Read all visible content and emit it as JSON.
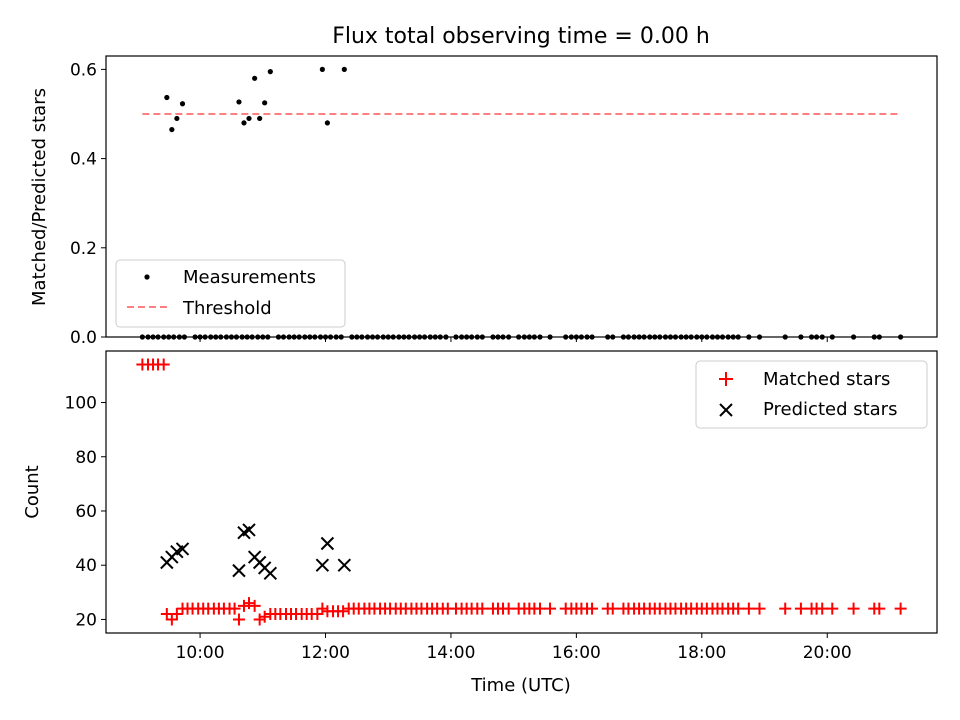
{
  "figure": {
    "title": "Flux total observing time = 0.00 h"
  },
  "colors": {
    "measure": "#000000",
    "threshold": "#ff8080",
    "matched": "#ff0000",
    "predicted": "#000000"
  },
  "chart_data": [
    {
      "type": "scatter",
      "ylabel": "Matched/Predicted stars",
      "xlim": [
        8.5,
        21.75
      ],
      "ylim": [
        0,
        0.63
      ],
      "yticks": [
        0.0,
        0.2,
        0.4,
        0.6
      ],
      "ytick_labels": [
        "0.0",
        "0.2",
        "0.4",
        "0.6"
      ],
      "legend_location": "lower-left",
      "threshold": {
        "label": "Threshold",
        "y": 0.5,
        "x_range": [
          9.08,
          21.17
        ]
      },
      "series": [
        {
          "name": "Measurements",
          "x": [
            9.08,
            9.17,
            9.25,
            9.33,
            9.42,
            9.5,
            9.58,
            9.67,
            9.75,
            9.92,
            10.0,
            10.08,
            10.17,
            10.25,
            10.33,
            10.42,
            10.5,
            10.58,
            10.67,
            10.75,
            10.83,
            10.92,
            11.0,
            11.08,
            11.25,
            11.33,
            11.42,
            11.5,
            11.58,
            11.67,
            11.75,
            11.83,
            11.92,
            12.0,
            12.08,
            12.17,
            12.25,
            12.42,
            12.5,
            12.58,
            12.67,
            12.75,
            12.83,
            12.92,
            13.0,
            13.08,
            13.17,
            13.25,
            13.33,
            13.42,
            13.5,
            13.58,
            13.67,
            13.75,
            13.83,
            13.92,
            14.08,
            14.17,
            14.25,
            14.33,
            14.42,
            14.5,
            14.67,
            14.75,
            14.83,
            14.92,
            15.08,
            15.17,
            15.25,
            15.33,
            15.42,
            15.58,
            15.83,
            15.92,
            16.0,
            16.08,
            16.17,
            16.25,
            16.5,
            16.58,
            16.75,
            16.83,
            16.92,
            17.0,
            17.08,
            17.17,
            17.25,
            17.33,
            17.42,
            17.5,
            17.58,
            17.67,
            17.75,
            17.83,
            17.92,
            18.0,
            18.08,
            18.17,
            18.25,
            18.33,
            18.42,
            18.5,
            18.58,
            18.75,
            18.92,
            19.33,
            19.58,
            19.75,
            19.83,
            19.92,
            20.08,
            20.42,
            20.75,
            20.83,
            21.17,
            9.47,
            9.55,
            9.63,
            9.72,
            10.62,
            10.7,
            10.78,
            10.87,
            10.95,
            11.03,
            11.12,
            11.95,
            12.03,
            12.3
          ],
          "y": [
            0,
            0,
            0,
            0,
            0,
            0,
            0,
            0,
            0,
            0,
            0,
            0,
            0,
            0,
            0,
            0,
            0,
            0,
            0,
            0,
            0,
            0,
            0,
            0,
            0,
            0,
            0,
            0,
            0,
            0,
            0,
            0,
            0,
            0,
            0,
            0,
            0,
            0,
            0,
            0,
            0,
            0,
            0,
            0,
            0,
            0,
            0,
            0,
            0,
            0,
            0,
            0,
            0,
            0,
            0,
            0,
            0,
            0,
            0,
            0,
            0,
            0,
            0,
            0,
            0,
            0,
            0,
            0,
            0,
            0,
            0,
            0,
            0,
            0,
            0,
            0,
            0,
            0,
            0,
            0,
            0,
            0,
            0,
            0,
            0,
            0,
            0,
            0,
            0,
            0,
            0,
            0,
            0,
            0,
            0,
            0,
            0,
            0,
            0,
            0,
            0,
            0,
            0,
            0,
            0,
            0,
            0,
            0,
            0,
            0,
            0,
            0,
            0,
            0,
            0,
            0.537,
            0.465,
            0.49,
            0.523,
            0.527,
            0.48,
            0.49,
            0.58,
            0.49,
            0.525,
            0.595,
            0.6,
            0.48,
            0.6
          ]
        }
      ]
    },
    {
      "type": "scatter",
      "ylabel": "Count",
      "xlabel": "Time (UTC)",
      "xlim": [
        8.5,
        21.75
      ],
      "ylim": [
        15,
        119
      ],
      "xticks": [
        10,
        12,
        14,
        16,
        18,
        20
      ],
      "xtick_labels": [
        "10:00",
        "12:00",
        "14:00",
        "16:00",
        "18:00",
        "20:00"
      ],
      "yticks": [
        20,
        40,
        60,
        80,
        100
      ],
      "ytick_labels": [
        "20",
        "40",
        "60",
        "80",
        "100"
      ],
      "legend_location": "upper-right",
      "series": [
        {
          "name": "Matched stars",
          "x": [
            9.08,
            9.17,
            9.25,
            9.33,
            9.42,
            9.47,
            9.55,
            9.63,
            9.72,
            9.8,
            9.88,
            9.97,
            10.05,
            10.13,
            10.22,
            10.3,
            10.38,
            10.47,
            10.55,
            10.62,
            10.7,
            10.78,
            10.87,
            10.95,
            11.03,
            11.12,
            11.2,
            11.28,
            11.37,
            11.45,
            11.53,
            11.62,
            11.7,
            11.78,
            11.87,
            11.95,
            12.03,
            12.12,
            12.2,
            12.28,
            12.37,
            12.45,
            12.53,
            12.62,
            12.7,
            12.78,
            12.87,
            12.95,
            13.03,
            13.12,
            13.2,
            13.28,
            13.37,
            13.45,
            13.53,
            13.62,
            13.7,
            13.78,
            13.87,
            13.95,
            14.08,
            14.17,
            14.25,
            14.33,
            14.42,
            14.5,
            14.67,
            14.75,
            14.83,
            14.92,
            15.08,
            15.17,
            15.25,
            15.33,
            15.42,
            15.58,
            15.83,
            15.92,
            16.0,
            16.08,
            16.17,
            16.25,
            16.5,
            16.58,
            16.75,
            16.83,
            16.92,
            17.0,
            17.08,
            17.17,
            17.25,
            17.33,
            17.42,
            17.5,
            17.58,
            17.67,
            17.75,
            17.83,
            17.92,
            18.0,
            18.08,
            18.17,
            18.25,
            18.33,
            18.42,
            18.5,
            18.58,
            18.75,
            18.92,
            19.33,
            19.58,
            19.75,
            19.83,
            19.92,
            20.08,
            20.42,
            20.75,
            20.83,
            21.17
          ],
          "y": [
            114,
            114,
            114,
            114,
            114,
            22,
            20,
            22,
            24,
            24,
            24,
            24,
            24,
            24,
            24,
            24,
            24,
            24,
            24,
            20,
            25,
            26,
            25,
            20,
            21,
            22,
            22,
            22,
            22,
            22,
            22,
            22,
            22,
            22,
            22,
            24,
            23,
            23,
            23,
            23,
            24,
            24,
            24,
            24,
            24,
            24,
            24,
            24,
            24,
            24,
            24,
            24,
            24,
            24,
            24,
            24,
            24,
            24,
            24,
            24,
            24,
            24,
            24,
            24,
            24,
            24,
            24,
            24,
            24,
            24,
            24,
            24,
            24,
            24,
            24,
            24,
            24,
            24,
            24,
            24,
            24,
            24,
            24,
            24,
            24,
            24,
            24,
            24,
            24,
            24,
            24,
            24,
            24,
            24,
            24,
            24,
            24,
            24,
            24,
            24,
            24,
            24,
            24,
            24,
            24,
            24,
            24,
            24,
            24,
            24,
            24,
            24,
            24,
            24,
            24,
            24,
            24,
            24,
            24
          ]
        },
        {
          "name": "Predicted stars",
          "x": [
            9.47,
            9.55,
            9.63,
            9.72,
            10.62,
            10.7,
            10.78,
            10.87,
            10.95,
            11.03,
            11.12,
            11.95,
            12.03,
            12.3
          ],
          "y": [
            41,
            43,
            45,
            46,
            38,
            52,
            53,
            43,
            41,
            39,
            37,
            40,
            48,
            40
          ]
        }
      ]
    }
  ]
}
